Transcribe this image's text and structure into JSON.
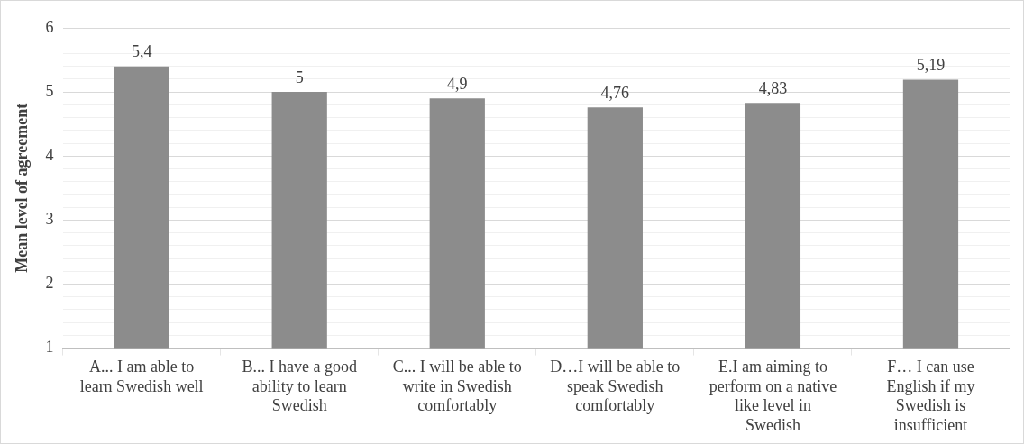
{
  "chart_data": {
    "type": "bar",
    "ylabel": "Mean level of agreement",
    "categories": [
      "A... I am able to learn Swedish well",
      "B... I have a good ability to learn Swedish",
      "C... I will be able to write in Swedish comfortably",
      "D…I will be able to speak Swedish comfortably",
      "E.I am aiming to perform on a native like level in Swedish",
      "F… I can use English if my Swedish is insufficient"
    ],
    "values": [
      5.4,
      5,
      4.9,
      4.76,
      4.83,
      5.19
    ],
    "value_labels": [
      "5,4",
      "5",
      "4,9",
      "4,76",
      "4,83",
      "5,19"
    ],
    "color": "#8c8c8c",
    "ylim": [
      1,
      6
    ],
    "yticks": [
      1,
      {
        "value": 1.2,
        "label": null
      },
      {
        "value": 1.4,
        "label": null
      },
      {
        "value": 1.6,
        "label": null
      },
      {
        "value": 1.8,
        "label": null
      },
      2,
      {
        "value": 2.2,
        "label": null
      },
      {
        "value": 2.4,
        "label": null
      },
      {
        "value": 2.6,
        "label": null
      },
      {
        "value": 2.8,
        "label": null
      },
      3,
      {
        "value": 3.2,
        "label": null
      },
      {
        "value": 3.4,
        "label": null
      },
      {
        "value": 3.6,
        "label": null
      },
      {
        "value": 3.8,
        "label": null
      },
      4,
      {
        "value": 4.2,
        "label": null
      },
      {
        "value": 4.4,
        "label": null
      },
      {
        "value": 4.6,
        "label": null
      },
      {
        "value": 4.8,
        "label": null
      },
      5,
      {
        "value": 5.2,
        "label": null
      },
      {
        "value": 5.4,
        "label": null
      },
      {
        "value": 5.6,
        "label": null
      },
      {
        "value": 5.8,
        "label": null
      },
      6
    ],
    "grid": true
  }
}
